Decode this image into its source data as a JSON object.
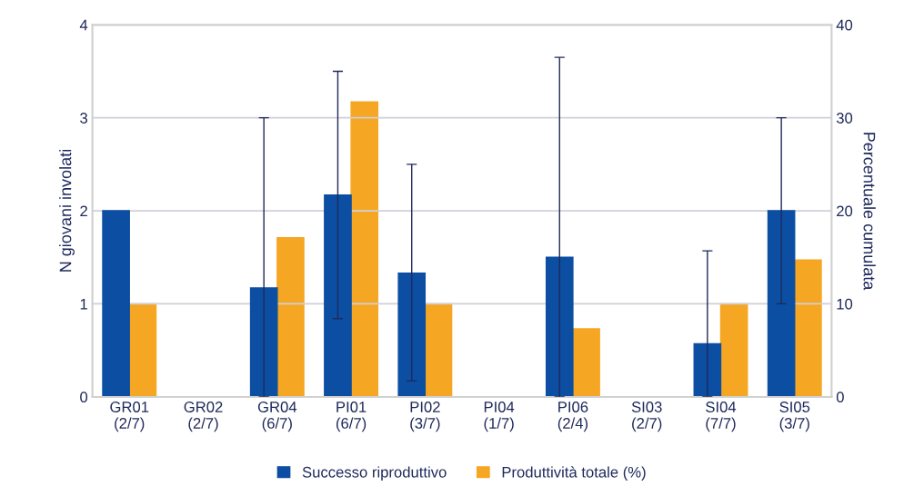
{
  "chart_data": {
    "type": "bar",
    "ylabel": "N giovani involati",
    "y2label": "Percentuale cumulata",
    "categories": [
      "GR01\n(2/7)",
      "GR02\n(2/7)",
      "GR04\n(6/7)",
      "PI01\n(6/7)",
      "PI02\n(3/7)",
      "PI04\n(1/7)",
      "PI06\n(2/4)",
      "SI03\n(2/7)",
      "SI04\n(7/7)",
      "SI05\n(3/7)"
    ],
    "series": [
      {
        "name": "Successo riproduttivo",
        "color": "#0b4ea2",
        "values": [
          2.0,
          0,
          1.17,
          2.17,
          1.33,
          0,
          1.5,
          0,
          0.57,
          2.0
        ],
        "errors": [
          null,
          null,
          [
            0,
            3.0
          ],
          [
            0.84,
            3.5
          ],
          [
            0.17,
            2.5
          ],
          null,
          [
            0,
            3.65
          ],
          null,
          [
            0,
            1.57
          ],
          [
            1.0,
            3.0
          ]
        ]
      },
      {
        "name": "Produttività totale (%)",
        "color": "#f5a623",
        "axis": "y2",
        "values": [
          10,
          0,
          17.1,
          31.7,
          10,
          0,
          7.3,
          0,
          10,
          14.7
        ]
      }
    ],
    "ylim": [
      0,
      4
    ],
    "yticks": [
      0,
      1,
      2,
      3,
      4
    ],
    "y2lim": [
      0,
      40
    ],
    "y2ticks": [
      0,
      10,
      20,
      30,
      40
    ],
    "grid": "y",
    "legend": "bottom"
  }
}
